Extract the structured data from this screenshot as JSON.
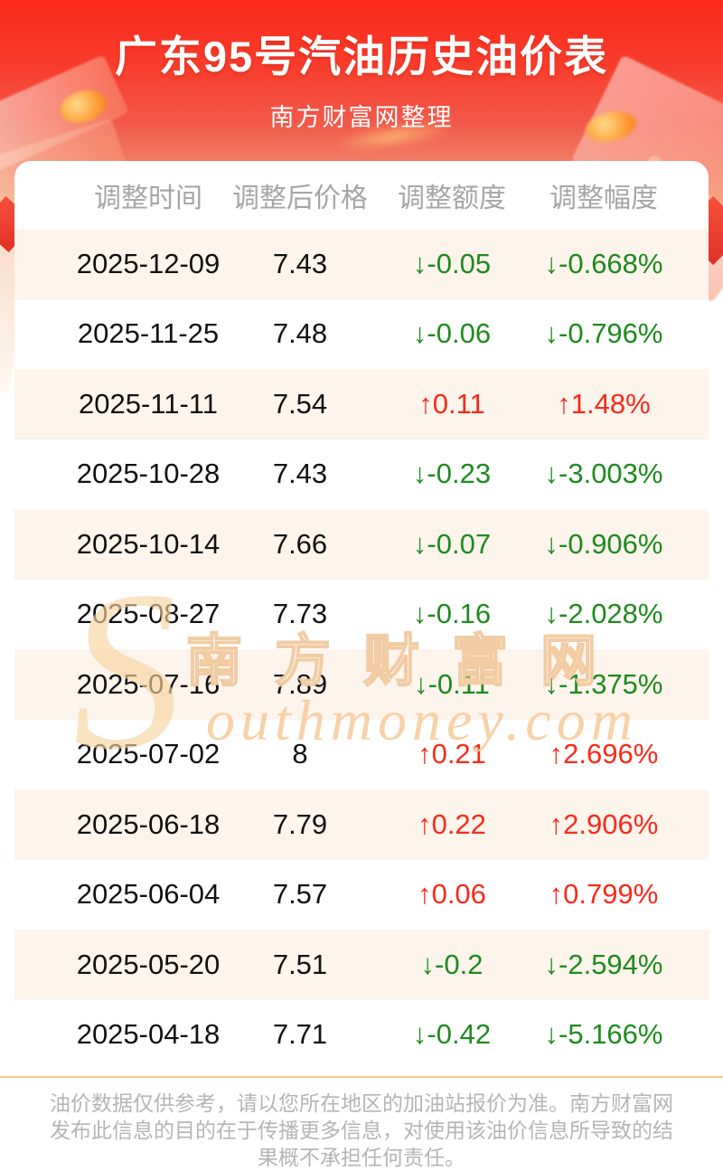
{
  "header": {
    "title": "广东95号汽油历史油价表",
    "subtitle": "南方财富网整理"
  },
  "table": {
    "columns": [
      "调整时间",
      "调整后价格",
      "调整额度",
      "调整幅度"
    ],
    "rows": [
      {
        "date": "2025-12-09",
        "price": "7.43",
        "change": "↓-0.05",
        "percent": "↓-0.668%",
        "direction": "down"
      },
      {
        "date": "2025-11-25",
        "price": "7.48",
        "change": "↓-0.06",
        "percent": "↓-0.796%",
        "direction": "down"
      },
      {
        "date": "2025-11-11",
        "price": "7.54",
        "change": "↑0.11",
        "percent": "↑1.48%",
        "direction": "up"
      },
      {
        "date": "2025-10-28",
        "price": "7.43",
        "change": "↓-0.23",
        "percent": "↓-3.003%",
        "direction": "down"
      },
      {
        "date": "2025-10-14",
        "price": "7.66",
        "change": "↓-0.07",
        "percent": "↓-0.906%",
        "direction": "down"
      },
      {
        "date": "2025-08-27",
        "price": "7.73",
        "change": "↓-0.16",
        "percent": "↓-2.028%",
        "direction": "down"
      },
      {
        "date": "2025-07-16",
        "price": "7.89",
        "change": "↓-0.11",
        "percent": "↓-1.375%",
        "direction": "down"
      },
      {
        "date": "2025-07-02",
        "price": "8",
        "change": "↑0.21",
        "percent": "↑2.696%",
        "direction": "up"
      },
      {
        "date": "2025-06-18",
        "price": "7.79",
        "change": "↑0.22",
        "percent": "↑2.906%",
        "direction": "up"
      },
      {
        "date": "2025-06-04",
        "price": "7.57",
        "change": "↑0.06",
        "percent": "↑0.799%",
        "direction": "up"
      },
      {
        "date": "2025-05-20",
        "price": "7.51",
        "change": "↓-0.2",
        "percent": "↓-2.594%",
        "direction": "down"
      },
      {
        "date": "2025-04-18",
        "price": "7.71",
        "change": "↓-0.42",
        "percent": "↓-5.166%",
        "direction": "down"
      }
    ]
  },
  "watermark": {
    "big_letter": "S",
    "cn_text": "南方财富网",
    "en_text": "outhmoney.com"
  },
  "footer": {
    "disclaimer": "油价数据仅供参考，请以您所在地区的加油站报价为准。南方财富网发布此信息的目的在于传播更多信息，对使用该油价信息所导致的结果概不承担任何责任。"
  },
  "colors": {
    "up": "#f92a1a",
    "down": "#1e8b1e",
    "header_top": "#fc2a1b",
    "header_bottom": "#f9c795",
    "row_alt": "#fdf4ec",
    "footer_border": "#f8c78e"
  }
}
